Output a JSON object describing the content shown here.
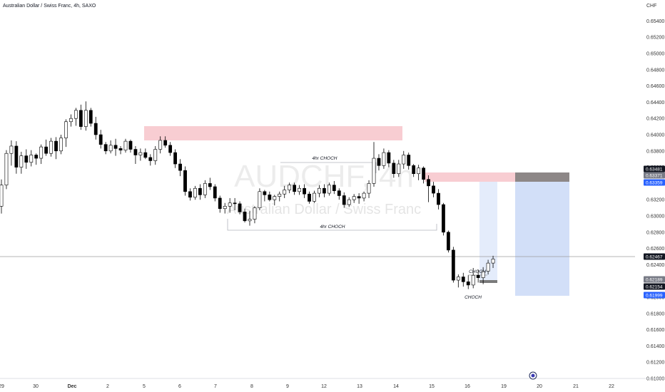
{
  "header": {
    "title": "Australian Dollar / Swiss Franc, 4h, SAXO",
    "currency": "CHF"
  },
  "watermark": {
    "ticker": "AUDCHF, 4h",
    "name": "Australian Dollar / Swiss Franc"
  },
  "colors": {
    "bull_body": "#ffffff",
    "bear_body": "#000000",
    "wick": "#000000",
    "supply_zone": "#f8cdd2",
    "long_target": "#cddcf7",
    "long_stop": "#7a7a7a",
    "price_line": "#9e9e9e",
    "badge_blue": "#2962ff",
    "badge_black": "#131722",
    "badge_gray": "#787b86"
  },
  "chart_data": {
    "type": "candlestick",
    "title": "Australian Dollar / Swiss Franc, 4h, SAXO",
    "x_tick_labels": [
      "29",
      "30",
      "Dec",
      "2",
      "5",
      "6",
      "7",
      "8",
      "9",
      "12",
      "13",
      "14",
      "15",
      "16",
      "19",
      "20",
      "21",
      "22"
    ],
    "y_tick_labels": [
      "0.65400",
      "0.65200",
      "0.65000",
      "0.64800",
      "0.64600",
      "0.64400",
      "0.64200",
      "0.64000",
      "0.63800",
      "0.63600",
      "0.63400",
      "0.63200",
      "0.63000",
      "0.62800",
      "0.62600",
      "0.62400",
      "0.62200",
      "0.62000",
      "0.61800",
      "0.61600",
      "0.61400",
      "0.61200",
      "0.61000"
    ],
    "ylim": [
      0.61,
      0.655
    ],
    "grid": false,
    "ohlc": [
      [
        0.6312,
        0.6345,
        0.6303,
        0.6338
      ],
      [
        0.6338,
        0.6381,
        0.6333,
        0.6377
      ],
      [
        0.6377,
        0.6393,
        0.6362,
        0.6386
      ],
      [
        0.6386,
        0.6392,
        0.6352,
        0.636
      ],
      [
        0.636,
        0.6379,
        0.6352,
        0.6374
      ],
      [
        0.6374,
        0.6382,
        0.6358,
        0.6366
      ],
      [
        0.6366,
        0.6381,
        0.6361,
        0.6375
      ],
      [
        0.6375,
        0.6377,
        0.6363,
        0.6371
      ],
      [
        0.6371,
        0.6388,
        0.6364,
        0.6385
      ],
      [
        0.6385,
        0.6394,
        0.6374,
        0.6377
      ],
      [
        0.6377,
        0.6396,
        0.6373,
        0.6392
      ],
      [
        0.6392,
        0.6397,
        0.637,
        0.638
      ],
      [
        0.638,
        0.64,
        0.6376,
        0.6396
      ],
      [
        0.6396,
        0.6419,
        0.6385,
        0.6416
      ],
      [
        0.6416,
        0.6425,
        0.641,
        0.642
      ],
      [
        0.642,
        0.6433,
        0.6411,
        0.643
      ],
      [
        0.643,
        0.6437,
        0.6406,
        0.641
      ],
      [
        0.641,
        0.6441,
        0.6405,
        0.643
      ],
      [
        0.643,
        0.6433,
        0.641,
        0.6414
      ],
      [
        0.6414,
        0.6422,
        0.6394,
        0.64
      ],
      [
        0.64,
        0.6406,
        0.6383,
        0.6388
      ],
      [
        0.6388,
        0.6391,
        0.6376,
        0.638
      ],
      [
        0.638,
        0.6393,
        0.6377,
        0.6387
      ],
      [
        0.6387,
        0.6395,
        0.6374,
        0.6383
      ],
      [
        0.6383,
        0.6386,
        0.6376,
        0.6381
      ],
      [
        0.6381,
        0.6395,
        0.6378,
        0.6392
      ],
      [
        0.6392,
        0.6394,
        0.6378,
        0.6382
      ],
      [
        0.6382,
        0.6386,
        0.6364,
        0.6375
      ],
      [
        0.6375,
        0.6383,
        0.6368,
        0.6378
      ],
      [
        0.6378,
        0.6383,
        0.637,
        0.6372
      ],
      [
        0.6372,
        0.6376,
        0.6362,
        0.6368
      ],
      [
        0.6368,
        0.6386,
        0.6363,
        0.6382
      ],
      [
        0.6382,
        0.6398,
        0.6377,
        0.6393
      ],
      [
        0.6393,
        0.6398,
        0.6384,
        0.6387
      ],
      [
        0.6387,
        0.6391,
        0.6374,
        0.6378
      ],
      [
        0.6378,
        0.6382,
        0.6359,
        0.6364
      ],
      [
        0.6364,
        0.637,
        0.6349,
        0.6356
      ],
      [
        0.6356,
        0.6361,
        0.6325,
        0.633
      ],
      [
        0.633,
        0.6334,
        0.6319,
        0.6323
      ],
      [
        0.6323,
        0.6337,
        0.632,
        0.6334
      ],
      [
        0.6334,
        0.6339,
        0.632,
        0.6326
      ],
      [
        0.6326,
        0.6344,
        0.6322,
        0.634
      ],
      [
        0.634,
        0.6347,
        0.6332,
        0.6336
      ],
      [
        0.6336,
        0.6339,
        0.6318,
        0.6322
      ],
      [
        0.6322,
        0.6325,
        0.6304,
        0.6309
      ],
      [
        0.6309,
        0.6316,
        0.6303,
        0.6312
      ],
      [
        0.6312,
        0.6322,
        0.6304,
        0.6316
      ],
      [
        0.6316,
        0.6322,
        0.6307,
        0.6315
      ],
      [
        0.6315,
        0.6318,
        0.6302,
        0.6305
      ],
      [
        0.6305,
        0.6309,
        0.6292,
        0.6294
      ],
      [
        0.6294,
        0.6306,
        0.6288,
        0.6296
      ],
      [
        0.6296,
        0.6312,
        0.6291,
        0.631
      ],
      [
        0.631,
        0.6334,
        0.6307,
        0.633
      ],
      [
        0.633,
        0.6332,
        0.6318,
        0.6326
      ],
      [
        0.6326,
        0.633,
        0.6318,
        0.632
      ],
      [
        0.632,
        0.6326,
        0.6313,
        0.6324
      ],
      [
        0.6324,
        0.633,
        0.6318,
        0.6327
      ],
      [
        0.6327,
        0.6337,
        0.6322,
        0.6332
      ],
      [
        0.6332,
        0.6341,
        0.6328,
        0.6338
      ],
      [
        0.6338,
        0.6341,
        0.6326,
        0.633
      ],
      [
        0.633,
        0.6338,
        0.6326,
        0.6334
      ],
      [
        0.6334,
        0.6339,
        0.6322,
        0.6327
      ],
      [
        0.6327,
        0.633,
        0.6315,
        0.6318
      ],
      [
        0.6318,
        0.6331,
        0.6316,
        0.6328
      ],
      [
        0.6328,
        0.6338,
        0.6323,
        0.6334
      ],
      [
        0.6334,
        0.6339,
        0.6323,
        0.6328
      ],
      [
        0.6328,
        0.6341,
        0.6325,
        0.6338
      ],
      [
        0.6338,
        0.6343,
        0.6327,
        0.6331
      ],
      [
        0.6331,
        0.6334,
        0.632,
        0.6325
      ],
      [
        0.6325,
        0.6329,
        0.631,
        0.6314
      ],
      [
        0.6314,
        0.6323,
        0.6311,
        0.632
      ],
      [
        0.632,
        0.6327,
        0.6316,
        0.6324
      ],
      [
        0.6324,
        0.6328,
        0.6315,
        0.6322
      ],
      [
        0.6322,
        0.633,
        0.6318,
        0.6328
      ],
      [
        0.6328,
        0.6344,
        0.6322,
        0.634
      ],
      [
        0.634,
        0.6391,
        0.6336,
        0.6371
      ],
      [
        0.6371,
        0.6376,
        0.6356,
        0.6362
      ],
      [
        0.6362,
        0.6383,
        0.6358,
        0.6378
      ],
      [
        0.6378,
        0.6381,
        0.636,
        0.6365
      ],
      [
        0.6365,
        0.6369,
        0.6347,
        0.6352
      ],
      [
        0.6352,
        0.6369,
        0.6348,
        0.6364
      ],
      [
        0.6364,
        0.638,
        0.6358,
        0.6375
      ],
      [
        0.6375,
        0.6378,
        0.6357,
        0.6362
      ],
      [
        0.6362,
        0.6364,
        0.6348,
        0.6352
      ],
      [
        0.6352,
        0.6363,
        0.6344,
        0.6359
      ],
      [
        0.6359,
        0.6361,
        0.634,
        0.6345
      ],
      [
        0.6345,
        0.635,
        0.6317,
        0.6337
      ],
      [
        0.6337,
        0.6342,
        0.6323,
        0.6328
      ],
      [
        0.6328,
        0.6333,
        0.6308,
        0.6314
      ],
      [
        0.6314,
        0.6316,
        0.6276,
        0.628
      ],
      [
        0.628,
        0.6282,
        0.6255,
        0.6258
      ],
      [
        0.6258,
        0.6262,
        0.6218,
        0.6221
      ],
      [
        0.6221,
        0.6228,
        0.6212,
        0.6225
      ],
      [
        0.6225,
        0.623,
        0.6213,
        0.6219
      ],
      [
        0.6219,
        0.6227,
        0.621,
        0.6215
      ],
      [
        0.6215,
        0.6236,
        0.6211,
        0.6227
      ],
      [
        0.6227,
        0.6234,
        0.6218,
        0.6224
      ],
      [
        0.6224,
        0.6237,
        0.6216,
        0.6232
      ],
      [
        0.6232,
        0.6246,
        0.6228,
        0.6242
      ],
      [
        0.6242,
        0.6251,
        0.6236,
        0.6247
      ]
    ],
    "price_badges": [
      "0.63481",
      "0.63371",
      "0.63359",
      "0.62467",
      "0.62189",
      "0.62154",
      "0.61999"
    ],
    "annotations": [
      "4hr CHOCH",
      "4hr CHOCH",
      "CHOCH",
      "CHOCH"
    ]
  }
}
